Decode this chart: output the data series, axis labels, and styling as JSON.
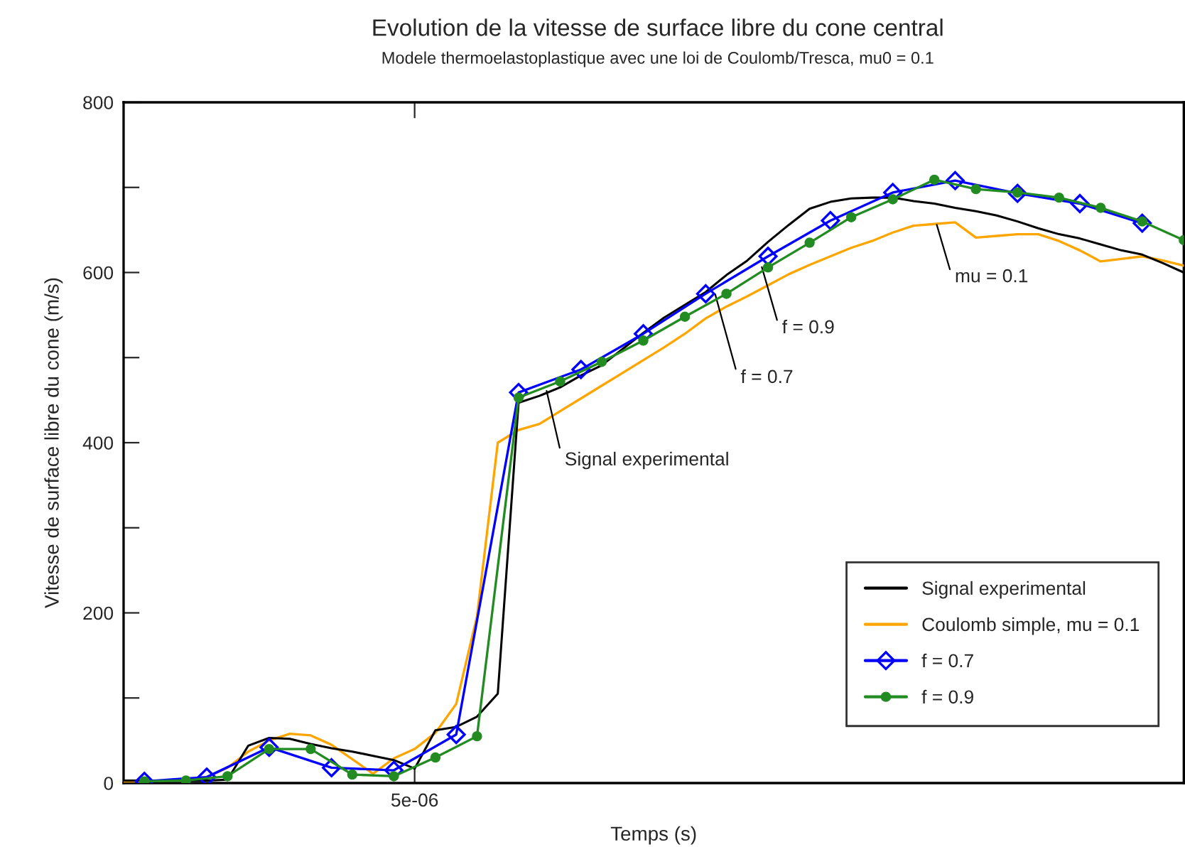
{
  "chart_data": {
    "type": "line",
    "title": "Evolution de la vitesse de surface libre du cone central",
    "subtitle": "Modele thermoelastoplastique avec une loi de Coulomb/Tresca, mu0 = 0.1",
    "xlabel": "Temps (s)",
    "ylabel": "Vitesse de surface libre du cone (m/s)",
    "categories": [
      null,
      null,
      null,
      null,
      null,
      null,
      null,
      null,
      null,
      null,
      null,
      null,
      null,
      null,
      "5e-06",
      null,
      null,
      null,
      null,
      null,
      null,
      null,
      null,
      null,
      null,
      null,
      null,
      null,
      null,
      null,
      null,
      null,
      null,
      null,
      null,
      null,
      null,
      null,
      null,
      null,
      null,
      null,
      null,
      null,
      null,
      null,
      null,
      null,
      null,
      null,
      null,
      null
    ],
    "ylim": [
      0,
      800
    ],
    "yticks": [
      0,
      {
        "value": 100,
        "label": null
      },
      200,
      {
        "value": 300,
        "label": null
      },
      400,
      {
        "value": 500,
        "label": null
      },
      600,
      {
        "value": 700,
        "label": null
      },
      800
    ],
    "grid": false,
    "legend": "bottom right",
    "line_style": "solid",
    "series": [
      {
        "name": "Signal experimental",
        "color": "#000000",
        "marker": "none",
        "values": [
          3,
          3,
          3,
          3,
          3,
          4,
          44,
          53,
          52,
          46,
          41,
          37,
          32,
          27,
          17,
          62,
          66,
          78,
          105,
          447,
          455,
          465,
          479,
          491,
          510,
          529,
          547,
          562,
          577,
          597,
          614,
          636,
          656,
          675,
          683,
          687,
          688,
          688,
          684,
          681,
          676,
          672,
          667,
          660,
          652,
          645,
          640,
          633,
          626,
          621,
          611,
          600
        ]
      },
      {
        "name": "Coulomb simple, mu = 0.1",
        "color": "#ffa500",
        "marker": "none",
        "values": [
          2,
          2,
          3,
          3,
          7,
          18,
          37,
          50,
          58,
          56,
          45,
          28,
          11,
          29,
          40,
          59,
          93,
          196,
          400,
          415,
          422,
          437,
          452,
          467,
          482,
          497,
          512,
          528,
          546,
          560,
          572,
          585,
          598,
          609,
          619,
          629,
          637,
          647,
          655,
          657,
          659,
          641,
          643,
          645,
          645,
          637,
          626,
          613,
          616,
          619,
          614,
          608
        ]
      },
      {
        "name": "f = 0.7",
        "color": "#0000ff",
        "marker": "diamond",
        "values": [
          null,
          2,
          null,
          null,
          7,
          null,
          null,
          42,
          null,
          null,
          18,
          null,
          null,
          15,
          null,
          null,
          57,
          null,
          null,
          459,
          null,
          null,
          486,
          null,
          null,
          528,
          null,
          null,
          575,
          null,
          null,
          619,
          null,
          null,
          661,
          null,
          null,
          694,
          null,
          null,
          708,
          null,
          null,
          693,
          null,
          null,
          681,
          null,
          null,
          658,
          null,
          null
        ]
      },
      {
        "name": "f = 0.9",
        "color": "#228b22",
        "marker": "circle",
        "values": [
          null,
          2,
          null,
          3,
          null,
          8,
          null,
          40,
          null,
          40,
          null,
          10,
          null,
          8,
          null,
          30,
          null,
          55,
          null,
          453,
          null,
          472,
          null,
          495,
          null,
          520,
          null,
          548,
          null,
          575,
          null,
          606,
          null,
          635,
          null,
          665,
          null,
          686,
          null,
          709,
          null,
          698,
          null,
          694,
          null,
          688,
          null,
          676,
          null,
          660,
          null,
          638
        ]
      }
    ],
    "annotations": [
      "Signal experimental",
      "f = 0.7",
      "f = 0.9",
      "mu = 0.1"
    ]
  }
}
